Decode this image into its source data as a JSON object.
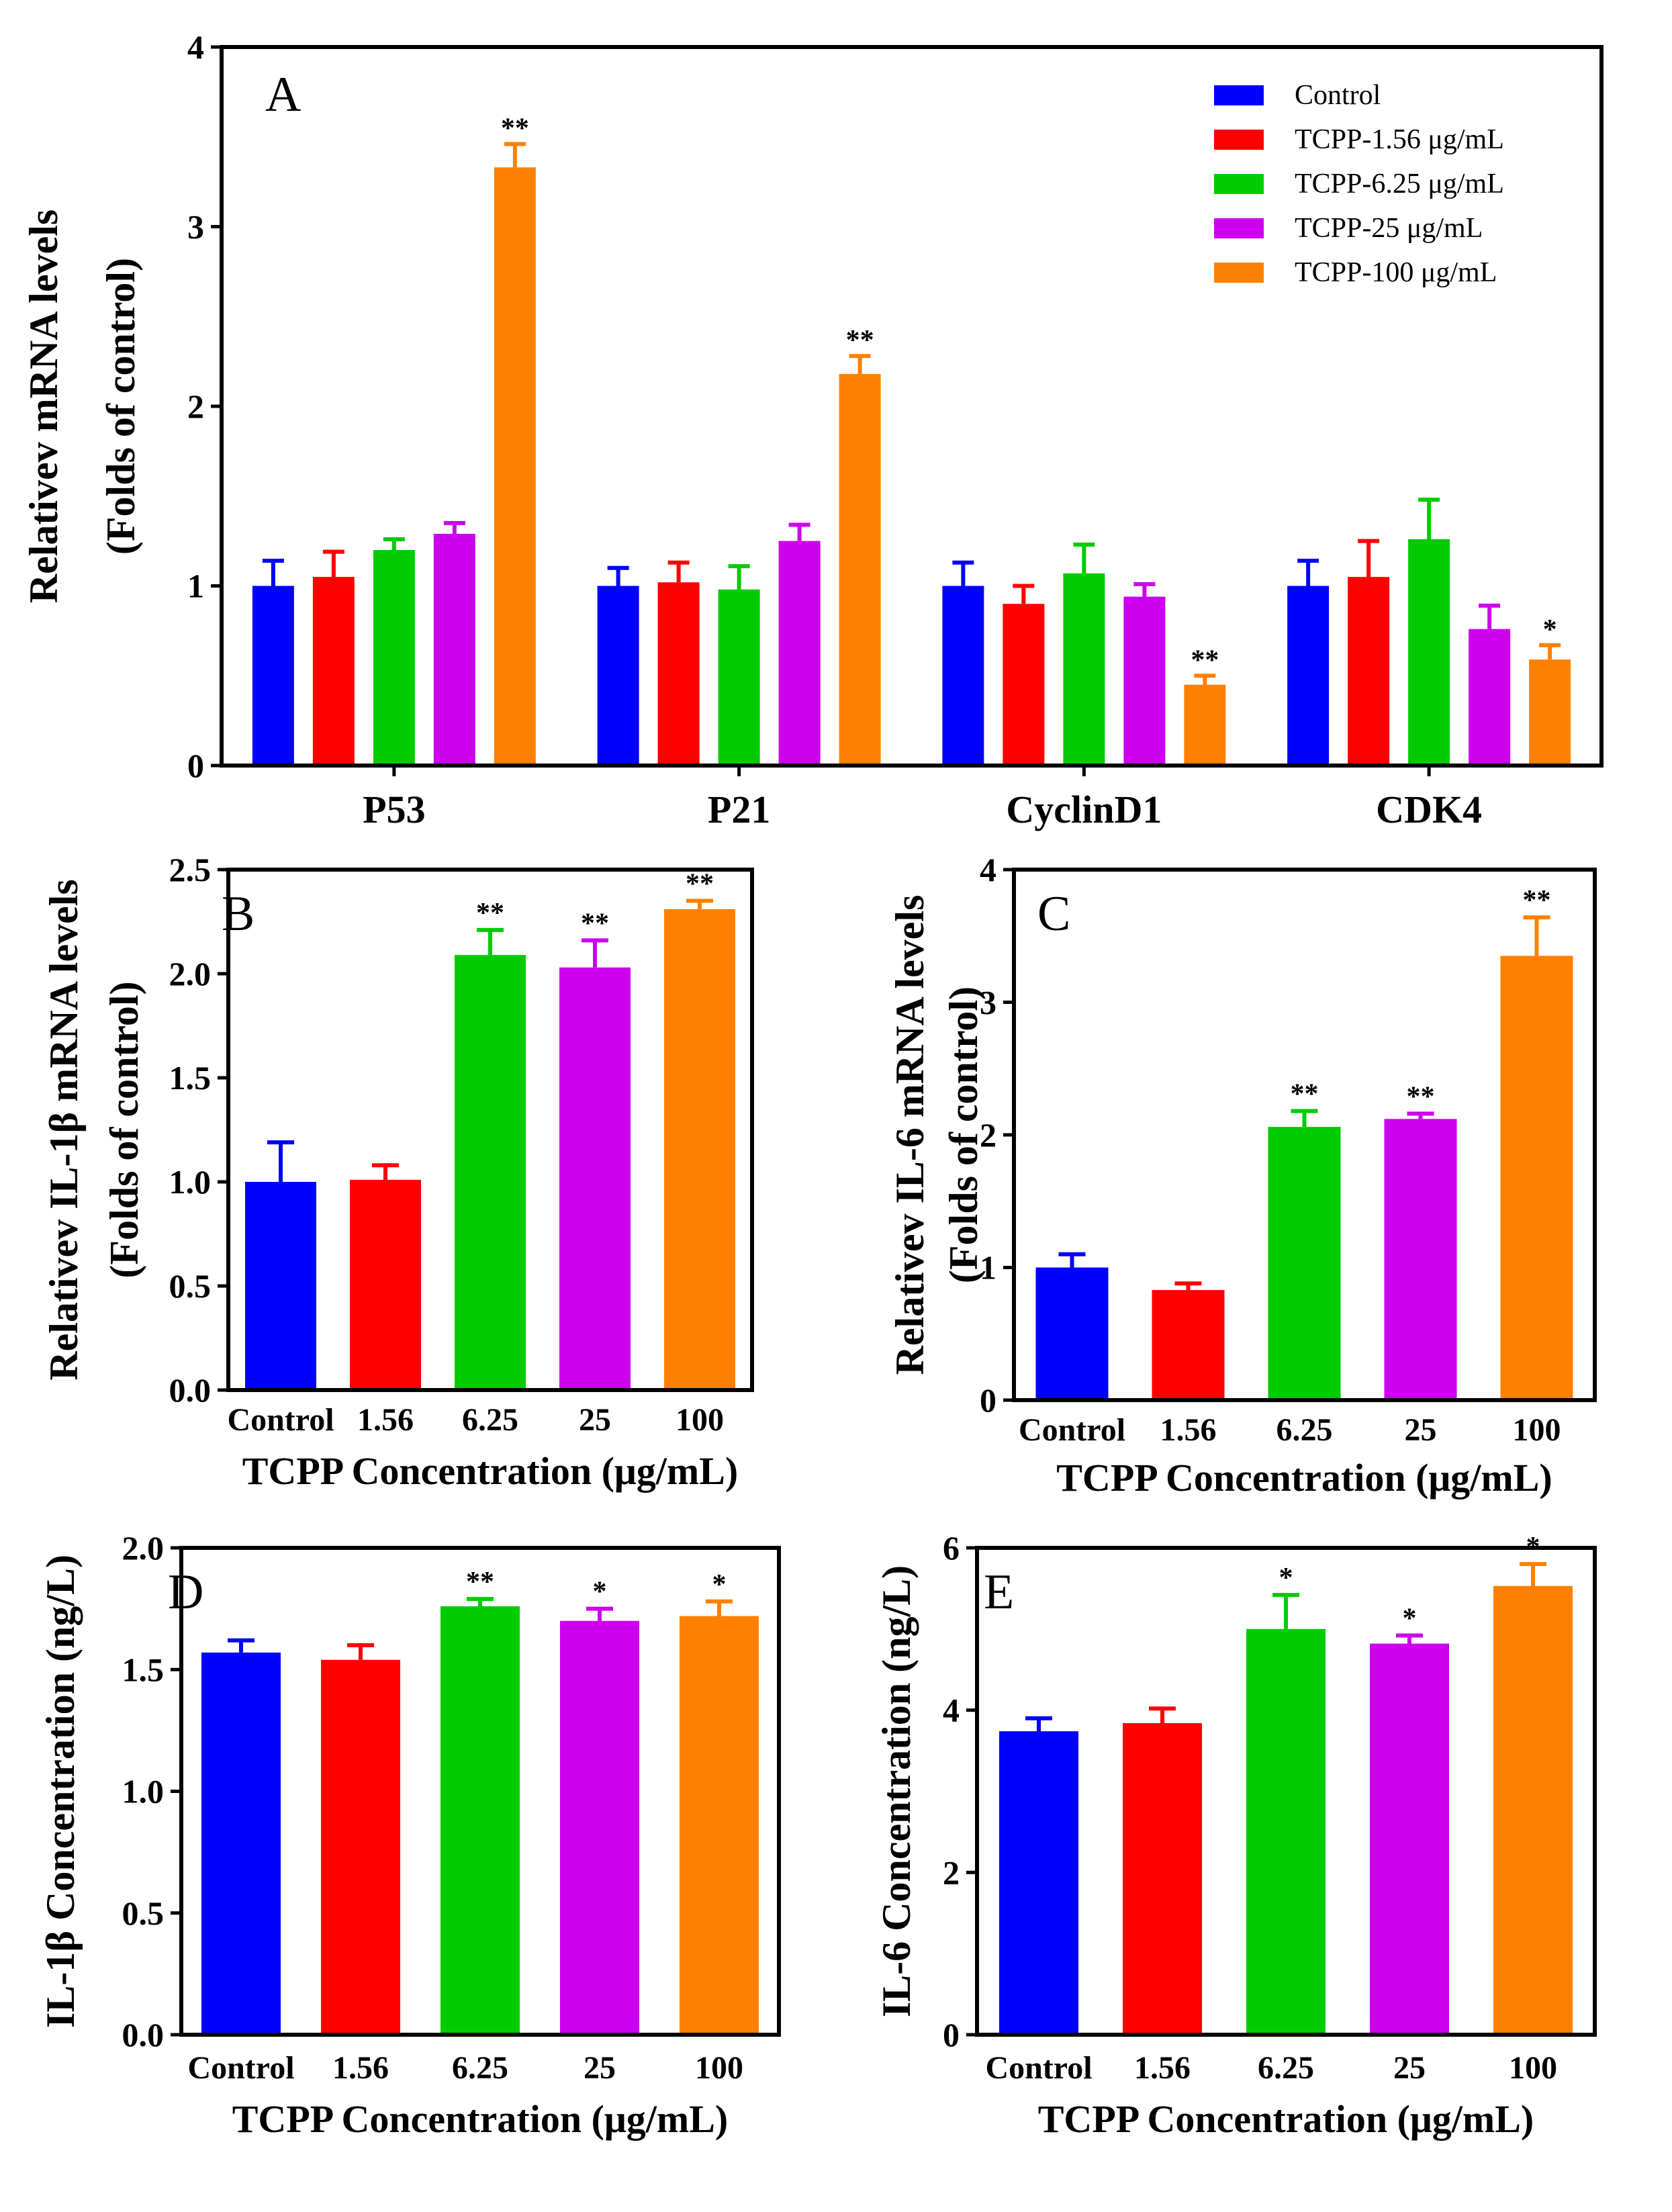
{
  "chart_data": [
    {
      "panel": "A",
      "type": "bar",
      "categories": [
        "P53",
        "P21",
        "CyclinD1",
        "CDK4"
      ],
      "series": [
        {
          "name": "Control",
          "color": "#0000ff",
          "values": [
            1.0,
            1.0,
            1.0,
            1.0
          ],
          "errors": [
            0.14,
            0.1,
            0.13,
            0.14
          ],
          "sig": [
            "",
            "",
            "",
            ""
          ]
        },
        {
          "name": "TCPP-1.56 μg/mL",
          "color": "#ff0000",
          "values": [
            1.05,
            1.02,
            0.9,
            1.05
          ],
          "errors": [
            0.14,
            0.11,
            0.1,
            0.2
          ],
          "sig": [
            "",
            "",
            "",
            ""
          ]
        },
        {
          "name": "TCPP-6.25 μg/mL",
          "color": "#00cc00",
          "values": [
            1.2,
            0.98,
            1.07,
            1.26
          ],
          "errors": [
            0.06,
            0.13,
            0.16,
            0.22
          ],
          "sig": [
            "",
            "",
            "",
            ""
          ]
        },
        {
          "name": "TCPP-25 μg/mL",
          "color": "#cc00ee",
          "values": [
            1.29,
            1.25,
            0.94,
            0.76
          ],
          "errors": [
            0.06,
            0.09,
            0.07,
            0.13
          ],
          "sig": [
            "",
            "",
            "",
            ""
          ]
        },
        {
          "name": "TCPP-100 μg/mL",
          "color": "#ff8000",
          "values": [
            3.33,
            2.18,
            0.45,
            0.59
          ],
          "errors": [
            0.13,
            0.1,
            0.05,
            0.08
          ],
          "sig": [
            "**",
            "**",
            "**",
            "*"
          ]
        }
      ],
      "xlabel": "",
      "ylabel_lines": [
        "Relativev mRNA levels",
        "(Folds of  control)"
      ],
      "ylim": [
        0,
        4
      ],
      "yticks": [
        "0",
        "1",
        "2",
        "3",
        "4"
      ],
      "legend_position": "top-right"
    },
    {
      "panel": "B",
      "type": "bar",
      "categories": [
        "Control",
        "1.56",
        "6.25",
        "25",
        "100"
      ],
      "values": [
        1.0,
        1.01,
        2.09,
        2.03,
        2.31
      ],
      "errors": [
        0.19,
        0.07,
        0.12,
        0.13,
        0.04
      ],
      "sig": [
        "",
        "",
        "**",
        "**",
        "**"
      ],
      "colors": [
        "#0000ff",
        "#ff0000",
        "#00cc00",
        "#cc00ee",
        "#ff8000"
      ],
      "xlabel": "TCPP Concentration (μg/mL)",
      "ylabel_lines": [
        "Relativev IL-1β mRNA levels",
        "(Folds of  control)"
      ],
      "ylim": [
        0,
        2.5
      ],
      "yticks": [
        "0.0",
        "0.5",
        "1.0",
        "1.5",
        "2.0",
        "2.5"
      ]
    },
    {
      "panel": "C",
      "type": "bar",
      "categories": [
        "Control",
        "1.56",
        "6.25",
        "25",
        "100"
      ],
      "values": [
        1.0,
        0.83,
        2.06,
        2.12,
        3.35
      ],
      "errors": [
        0.1,
        0.05,
        0.12,
        0.04,
        0.29
      ],
      "sig": [
        "",
        "",
        "**",
        "**",
        "**"
      ],
      "colors": [
        "#0000ff",
        "#ff0000",
        "#00cc00",
        "#cc00ee",
        "#ff8000"
      ],
      "xlabel": "TCPP Concentration (μg/mL)",
      "ylabel_lines": [
        "Relativev IL-6 mRNA levels",
        "(Folds of  control)"
      ],
      "ylim": [
        0,
        4
      ],
      "yticks": [
        "0",
        "1",
        "2",
        "3",
        "4"
      ]
    },
    {
      "panel": "D",
      "type": "bar",
      "categories": [
        "Control",
        "1.56",
        "6.25",
        "25",
        "100"
      ],
      "values": [
        1.57,
        1.54,
        1.76,
        1.7,
        1.72
      ],
      "errors": [
        0.05,
        0.06,
        0.03,
        0.05,
        0.06
      ],
      "sig": [
        "",
        "",
        "**",
        "*",
        "*"
      ],
      "colors": [
        "#0000ff",
        "#ff0000",
        "#00cc00",
        "#cc00ee",
        "#ff8000"
      ],
      "xlabel": "TCPP Concentration (μg/mL)",
      "ylabel_lines": [
        "IL-1β Concentration (ng/L)"
      ],
      "ylim": [
        0,
        2.0
      ],
      "yticks": [
        "0.0",
        "0.5",
        "1.0",
        "1.5",
        "2.0"
      ]
    },
    {
      "panel": "E",
      "type": "bar",
      "categories": [
        "Control",
        "1.56",
        "6.25",
        "25",
        "100"
      ],
      "values": [
        3.74,
        3.84,
        5.0,
        4.82,
        5.53
      ],
      "errors": [
        0.16,
        0.18,
        0.42,
        0.1,
        0.27
      ],
      "sig": [
        "",
        "",
        "*",
        "*",
        "*"
      ],
      "colors": [
        "#0000ff",
        "#ff0000",
        "#00cc00",
        "#cc00ee",
        "#ff8000"
      ],
      "xlabel": "TCPP Concentration (μg/mL)",
      "ylabel_lines": [
        "IL-6 Concentration (ng/L)"
      ],
      "ylim": [
        0,
        6
      ],
      "yticks": [
        "0",
        "2",
        "4",
        "6"
      ]
    }
  ]
}
